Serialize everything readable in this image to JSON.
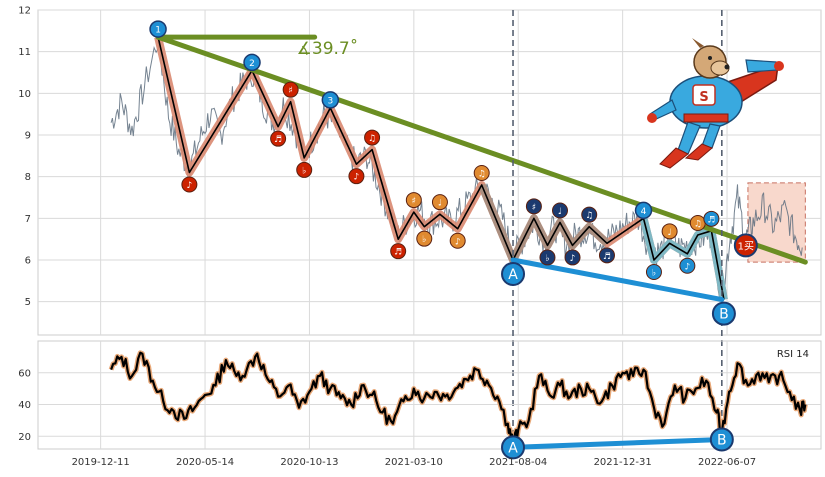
{
  "chart_data": [
    {
      "type": "line",
      "panel": "price",
      "x_tick_labels": [
        "2019-12-11",
        "2020-05-14",
        "2020-10-13",
        "2021-03-10",
        "2021-08-04",
        "2021-12-31",
        "2022-06-07"
      ],
      "y_ticks": [
        5,
        6,
        7,
        8,
        9,
        10,
        11,
        12
      ],
      "ylim": [
        4.2,
        12
      ],
      "xlim": [
        -0.6,
        6.9
      ],
      "grid": true,
      "angle_annotation": "∡39.7˚",
      "buy_label": "1买",
      "colors": {
        "price": "#5d6d7e",
        "trend_line": "#6b8e23",
        "zigzag_fill": "#d98870",
        "zigzag_line": "#000000",
        "fill_a": "#ab8f80",
        "fill_b": "#7fb8c4",
        "divergence_line": "#1e8fd4",
        "marker_red": "#cc2200",
        "marker_orange": "#e08a30",
        "marker_navy": "#1b3a6f",
        "marker_blue": "#1e8fd4",
        "box_fill": "#f8d8cc",
        "box_edge": "#c87060",
        "dashed": "#556070"
      },
      "pivot_points": [
        {
          "label": "1",
          "x": 0.55,
          "y": 11.35
        },
        {
          "label": "",
          "x": 0.85,
          "y": 8.1
        },
        {
          "label": "2",
          "x": 1.45,
          "y": 10.55
        },
        {
          "label": "",
          "x": 1.7,
          "y": 9.2
        },
        {
          "label": "",
          "x": 1.82,
          "y": 9.8
        },
        {
          "label": "",
          "x": 1.95,
          "y": 8.45
        },
        {
          "label": "3",
          "x": 2.2,
          "y": 9.65
        },
        {
          "label": "",
          "x": 2.45,
          "y": 8.3
        },
        {
          "label": "",
          "x": 2.6,
          "y": 8.65
        },
        {
          "label": "",
          "x": 2.85,
          "y": 6.5
        },
        {
          "label": "",
          "x": 3.0,
          "y": 7.15
        },
        {
          "label": "",
          "x": 3.1,
          "y": 6.8
        },
        {
          "label": "",
          "x": 3.25,
          "y": 7.1
        },
        {
          "label": "",
          "x": 3.42,
          "y": 6.75
        },
        {
          "label": "",
          "x": 3.65,
          "y": 7.8
        },
        {
          "label": "A",
          "x": 3.95,
          "y": 6.0
        },
        {
          "label": "",
          "x": 4.15,
          "y": 7.0
        },
        {
          "label": "",
          "x": 4.28,
          "y": 6.35
        },
        {
          "label": "",
          "x": 4.4,
          "y": 6.9
        },
        {
          "label": "",
          "x": 4.52,
          "y": 6.35
        },
        {
          "label": "",
          "x": 4.68,
          "y": 6.8
        },
        {
          "label": "",
          "x": 4.85,
          "y": 6.4
        },
        {
          "label": "4",
          "x": 5.2,
          "y": 7.0
        },
        {
          "label": "",
          "x": 5.3,
          "y": 6.0
        },
        {
          "label": "",
          "x": 5.45,
          "y": 6.4
        },
        {
          "label": "",
          "x": 5.62,
          "y": 6.15
        },
        {
          "label": "",
          "x": 5.72,
          "y": 6.6
        },
        {
          "label": "",
          "x": 5.85,
          "y": 6.7
        },
        {
          "label": "B",
          "x": 5.97,
          "y": 5.05
        }
      ],
      "trend_line": {
        "x": [
          0.55,
          6.75
        ],
        "y": [
          11.35,
          5.95
        ]
      },
      "angle_ray": {
        "x": [
          0.55,
          2.05
        ],
        "y": [
          11.35,
          11.35
        ]
      },
      "divergence_line": {
        "x": [
          3.95,
          5.95
        ],
        "y": [
          6.0,
          5.05
        ]
      },
      "vertical_markers": [
        {
          "label": "A",
          "x": 3.95
        },
        {
          "label": "B",
          "x": 5.95
        }
      ],
      "buy_point": {
        "x": 6.18,
        "y": 6.35
      },
      "future_box": {
        "x": [
          6.2,
          6.75
        ],
        "y": [
          5.95,
          7.85
        ]
      },
      "price_series": [
        {
          "x": 0.1,
          "y": 9.3
        },
        {
          "x": 0.2,
          "y": 9.8
        },
        {
          "x": 0.3,
          "y": 9.1
        },
        {
          "x": 0.4,
          "y": 10.0
        },
        {
          "x": 0.55,
          "y": 11.3
        },
        {
          "x": 0.65,
          "y": 9.5
        },
        {
          "x": 0.75,
          "y": 8.6
        },
        {
          "x": 0.85,
          "y": 8.2
        },
        {
          "x": 0.95,
          "y": 8.9
        },
        {
          "x": 1.05,
          "y": 9.5
        },
        {
          "x": 1.15,
          "y": 9.0
        },
        {
          "x": 1.25,
          "y": 9.8
        },
        {
          "x": 1.35,
          "y": 10.2
        },
        {
          "x": 1.45,
          "y": 10.5
        },
        {
          "x": 1.55,
          "y": 9.8
        },
        {
          "x": 1.65,
          "y": 9.3
        },
        {
          "x": 1.75,
          "y": 9.7
        },
        {
          "x": 1.85,
          "y": 9.2
        },
        {
          "x": 1.95,
          "y": 8.5
        },
        {
          "x": 2.05,
          "y": 9.0
        },
        {
          "x": 2.15,
          "y": 9.5
        },
        {
          "x": 2.25,
          "y": 9.2
        },
        {
          "x": 2.35,
          "y": 8.7
        },
        {
          "x": 2.45,
          "y": 8.3
        },
        {
          "x": 2.55,
          "y": 8.5
        },
        {
          "x": 2.65,
          "y": 7.9
        },
        {
          "x": 2.75,
          "y": 7.2
        },
        {
          "x": 2.85,
          "y": 6.6
        },
        {
          "x": 2.95,
          "y": 7.0
        },
        {
          "x": 3.05,
          "y": 7.2
        },
        {
          "x": 3.15,
          "y": 6.9
        },
        {
          "x": 3.25,
          "y": 7.0
        },
        {
          "x": 3.35,
          "y": 6.9
        },
        {
          "x": 3.45,
          "y": 7.2
        },
        {
          "x": 3.55,
          "y": 7.5
        },
        {
          "x": 3.65,
          "y": 7.8
        },
        {
          "x": 3.75,
          "y": 7.4
        },
        {
          "x": 3.85,
          "y": 7.0
        },
        {
          "x": 3.95,
          "y": 6.1
        },
        {
          "x": 4.05,
          "y": 6.5
        },
        {
          "x": 4.15,
          "y": 6.9
        },
        {
          "x": 4.25,
          "y": 6.5
        },
        {
          "x": 4.35,
          "y": 6.8
        },
        {
          "x": 4.45,
          "y": 6.4
        },
        {
          "x": 4.55,
          "y": 6.6
        },
        {
          "x": 4.65,
          "y": 6.7
        },
        {
          "x": 4.75,
          "y": 6.5
        },
        {
          "x": 4.85,
          "y": 6.5
        },
        {
          "x": 4.95,
          "y": 6.7
        },
        {
          "x": 5.05,
          "y": 6.9
        },
        {
          "x": 5.15,
          "y": 7.0
        },
        {
          "x": 5.25,
          "y": 6.3
        },
        {
          "x": 5.35,
          "y": 6.2
        },
        {
          "x": 5.45,
          "y": 6.5
        },
        {
          "x": 5.55,
          "y": 6.3
        },
        {
          "x": 5.65,
          "y": 6.4
        },
        {
          "x": 5.75,
          "y": 6.5
        },
        {
          "x": 5.85,
          "y": 6.6
        },
        {
          "x": 5.95,
          "y": 5.1
        },
        {
          "x": 6.02,
          "y": 6.4
        },
        {
          "x": 6.1,
          "y": 7.5
        },
        {
          "x": 6.18,
          "y": 6.5
        },
        {
          "x": 6.25,
          "y": 6.9
        },
        {
          "x": 6.35,
          "y": 7.3
        },
        {
          "x": 6.45,
          "y": 6.8
        },
        {
          "x": 6.55,
          "y": 7.2
        },
        {
          "x": 6.65,
          "y": 6.6
        },
        {
          "x": 6.72,
          "y": 6.3
        }
      ]
    },
    {
      "type": "line",
      "panel": "rsi",
      "series_label": "RSI 14",
      "y_ticks": [
        20,
        40,
        60
      ],
      "ylim": [
        12,
        80
      ],
      "xlim": [
        -0.6,
        6.9
      ],
      "grid": true,
      "colors": {
        "rsi": "#000000",
        "rsi_glow": "#e8a878",
        "divergence_line": "#1e8fd4"
      },
      "divergence_line": {
        "label_start": "A",
        "label_end": "B",
        "x": [
          3.95,
          5.95
        ],
        "y": [
          13,
          18
        ]
      },
      "values": [
        {
          "x": 0.1,
          "y": 62
        },
        {
          "x": 0.2,
          "y": 70
        },
        {
          "x": 0.3,
          "y": 58
        },
        {
          "x": 0.4,
          "y": 72
        },
        {
          "x": 0.5,
          "y": 55
        },
        {
          "x": 0.6,
          "y": 42
        },
        {
          "x": 0.7,
          "y": 36
        },
        {
          "x": 0.8,
          "y": 31
        },
        {
          "x": 0.9,
          "y": 38
        },
        {
          "x": 1.0,
          "y": 46
        },
        {
          "x": 1.1,
          "y": 52
        },
        {
          "x": 1.2,
          "y": 68
        },
        {
          "x": 1.3,
          "y": 58
        },
        {
          "x": 1.4,
          "y": 62
        },
        {
          "x": 1.5,
          "y": 72
        },
        {
          "x": 1.6,
          "y": 56
        },
        {
          "x": 1.7,
          "y": 45
        },
        {
          "x": 1.8,
          "y": 52
        },
        {
          "x": 1.9,
          "y": 38
        },
        {
          "x": 2.0,
          "y": 48
        },
        {
          "x": 2.1,
          "y": 58
        },
        {
          "x": 2.2,
          "y": 50
        },
        {
          "x": 2.3,
          "y": 44
        },
        {
          "x": 2.4,
          "y": 40
        },
        {
          "x": 2.5,
          "y": 52
        },
        {
          "x": 2.6,
          "y": 46
        },
        {
          "x": 2.7,
          "y": 35
        },
        {
          "x": 2.8,
          "y": 28
        },
        {
          "x": 2.9,
          "y": 42
        },
        {
          "x": 3.0,
          "y": 50
        },
        {
          "x": 3.1,
          "y": 44
        },
        {
          "x": 3.2,
          "y": 48
        },
        {
          "x": 3.3,
          "y": 45
        },
        {
          "x": 3.4,
          "y": 50
        },
        {
          "x": 3.5,
          "y": 56
        },
        {
          "x": 3.6,
          "y": 62
        },
        {
          "x": 3.7,
          "y": 55
        },
        {
          "x": 3.8,
          "y": 45
        },
        {
          "x": 3.9,
          "y": 28
        },
        {
          "x": 3.95,
          "y": 16
        },
        {
          "x": 4.0,
          "y": 24
        },
        {
          "x": 4.1,
          "y": 30
        },
        {
          "x": 4.2,
          "y": 58
        },
        {
          "x": 4.3,
          "y": 46
        },
        {
          "x": 4.4,
          "y": 52
        },
        {
          "x": 4.5,
          "y": 45
        },
        {
          "x": 4.6,
          "y": 50
        },
        {
          "x": 4.7,
          "y": 48
        },
        {
          "x": 4.8,
          "y": 42
        },
        {
          "x": 4.9,
          "y": 52
        },
        {
          "x": 5.0,
          "y": 60
        },
        {
          "x": 5.1,
          "y": 58
        },
        {
          "x": 5.2,
          "y": 62
        },
        {
          "x": 5.3,
          "y": 38
        },
        {
          "x": 5.4,
          "y": 28
        },
        {
          "x": 5.5,
          "y": 52
        },
        {
          "x": 5.6,
          "y": 44
        },
        {
          "x": 5.7,
          "y": 50
        },
        {
          "x": 5.8,
          "y": 55
        },
        {
          "x": 5.9,
          "y": 35
        },
        {
          "x": 5.95,
          "y": 22
        },
        {
          "x": 6.02,
          "y": 48
        },
        {
          "x": 6.1,
          "y": 66
        },
        {
          "x": 6.2,
          "y": 52
        },
        {
          "x": 6.3,
          "y": 60
        },
        {
          "x": 6.4,
          "y": 54
        },
        {
          "x": 6.5,
          "y": 58
        },
        {
          "x": 6.6,
          "y": 48
        },
        {
          "x": 6.7,
          "y": 36
        },
        {
          "x": 6.75,
          "y": 40
        }
      ]
    }
  ]
}
